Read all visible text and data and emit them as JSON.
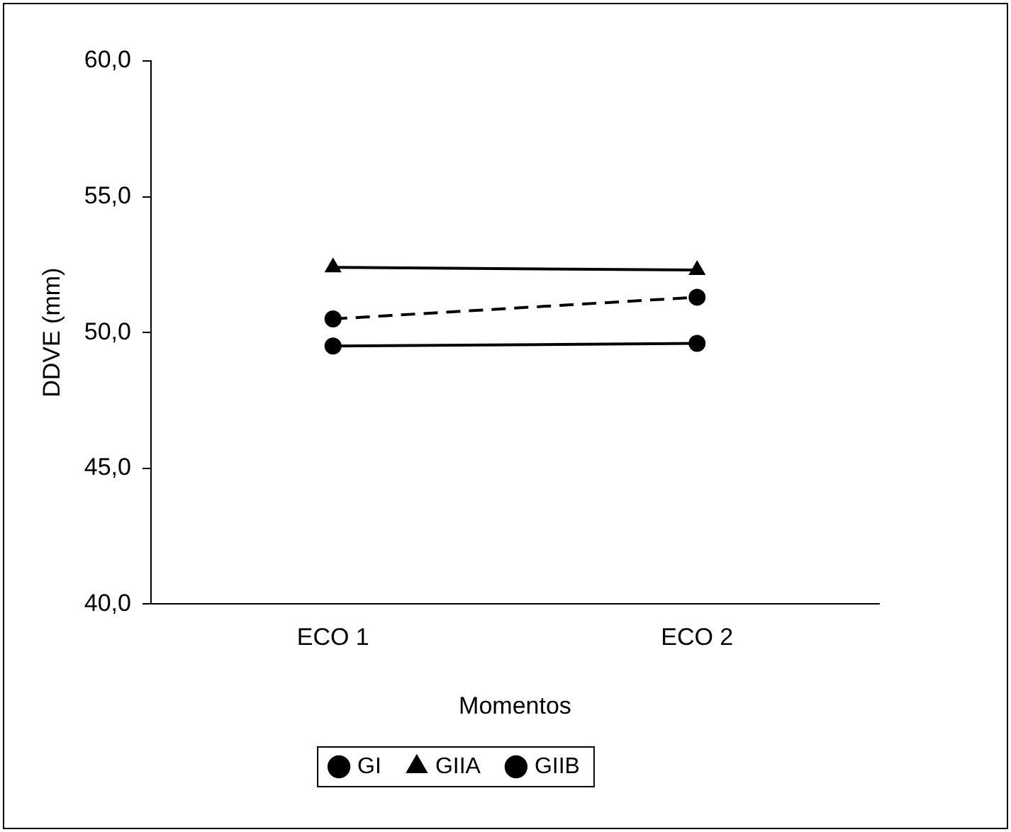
{
  "chart_data": {
    "type": "line",
    "xlabel": "Momentos",
    "ylabel": "DDVE (mm)",
    "categories": [
      "ECO 1",
      "ECO 2"
    ],
    "series": [
      {
        "name": "GI",
        "color": "#000000",
        "values": [
          49.5,
          49.6
        ],
        "marker": "circle",
        "line_style": "solid"
      },
      {
        "name": "GIIA",
        "color": "#000000",
        "values": [
          52.4,
          52.3
        ],
        "marker": "triangle",
        "line_style": "solid"
      },
      {
        "name": "GIIB",
        "color": "#000000",
        "values": [
          50.5,
          51.3
        ],
        "marker": "circle",
        "line_style": "dashed"
      }
    ],
    "ylim": [
      40,
      60
    ],
    "yticks": [
      {
        "value": 40,
        "label": "40,0"
      },
      {
        "value": 45,
        "label": "45,0"
      },
      {
        "value": 50,
        "label": "50,0"
      },
      {
        "value": 55,
        "label": "55,0"
      },
      {
        "value": 60,
        "label": "60,0"
      }
    ],
    "grid": false,
    "legend": "bottom"
  }
}
